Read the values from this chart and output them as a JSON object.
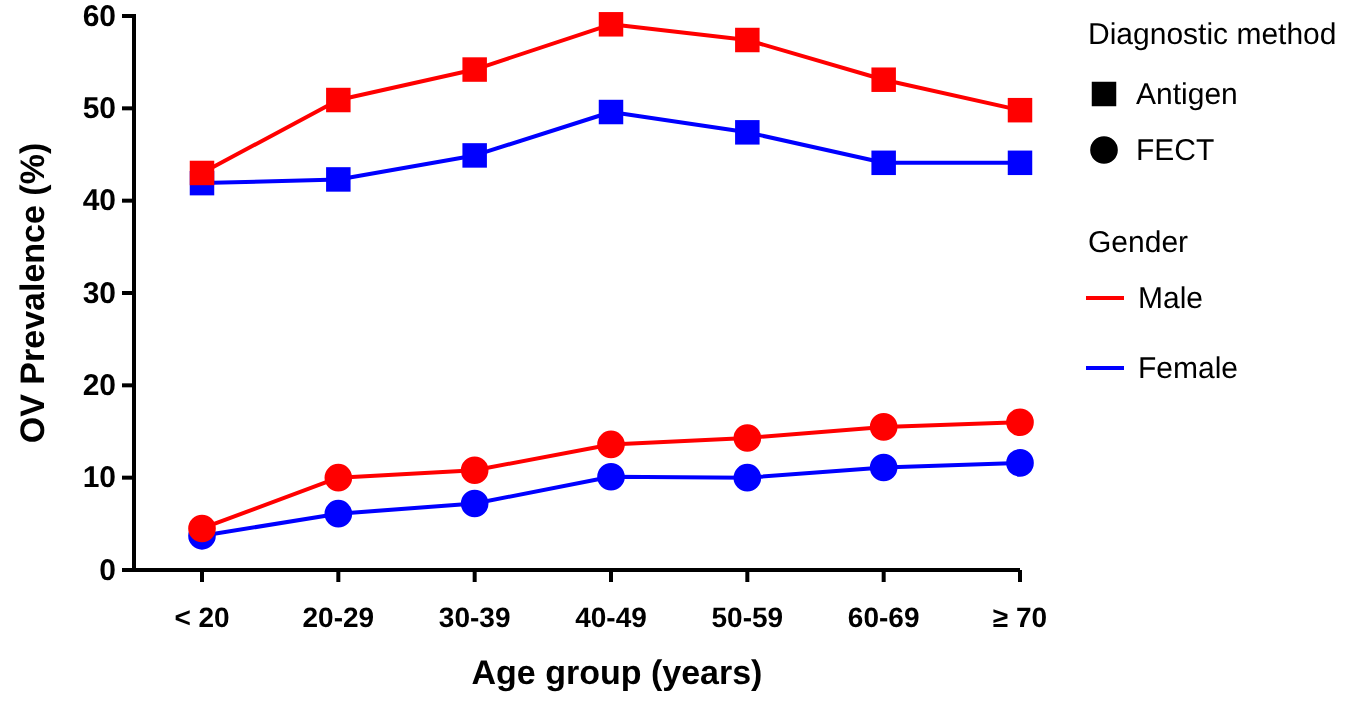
{
  "chart_data": {
    "type": "line",
    "xlabel": "Age group (years)",
    "ylabel": "OV Prevalence (%)",
    "categories": [
      "< 20",
      "20-29",
      "30-39",
      "40-49",
      "50-59",
      "60-69",
      "≥ 70"
    ],
    "ylim": [
      0,
      60
    ],
    "yticks": [
      0,
      10,
      20,
      30,
      40,
      50,
      60
    ],
    "grid": false,
    "annotations": [
      "Diagnostic method",
      "Antigen",
      "FECT",
      "Gender",
      "Male",
      "Female"
    ],
    "series": [
      {
        "color": "#ff0000",
        "marker": "square",
        "values": [
          43.0,
          50.9,
          54.2,
          59.1,
          57.4,
          53.1,
          49.8
        ]
      },
      {
        "color": "#0000ff",
        "marker": "square",
        "values": [
          41.9,
          42.3,
          44.9,
          49.6,
          47.4,
          44.1,
          44.1
        ]
      },
      {
        "color": "#ff0000",
        "marker": "circle",
        "values": [
          4.5,
          10.0,
          10.8,
          13.6,
          14.3,
          15.5,
          16.0
        ]
      },
      {
        "color": "#0000ff",
        "marker": "circle",
        "values": [
          3.7,
          6.1,
          7.2,
          10.1,
          10.0,
          11.1,
          11.6
        ]
      }
    ]
  }
}
